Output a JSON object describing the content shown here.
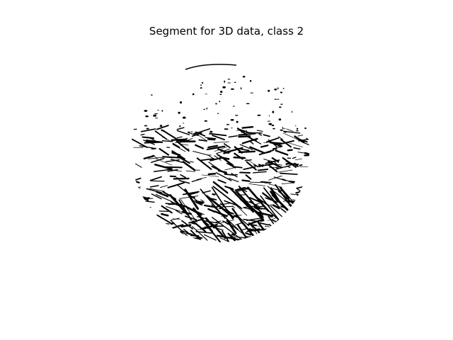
{
  "figure": {
    "title": "Segment for 3D data, class 2"
  },
  "image": {
    "subject": "binary segmentation mask of a circular 3D data slice",
    "colors": {
      "foreground": "#000000",
      "background": "#ffffff"
    }
  }
}
